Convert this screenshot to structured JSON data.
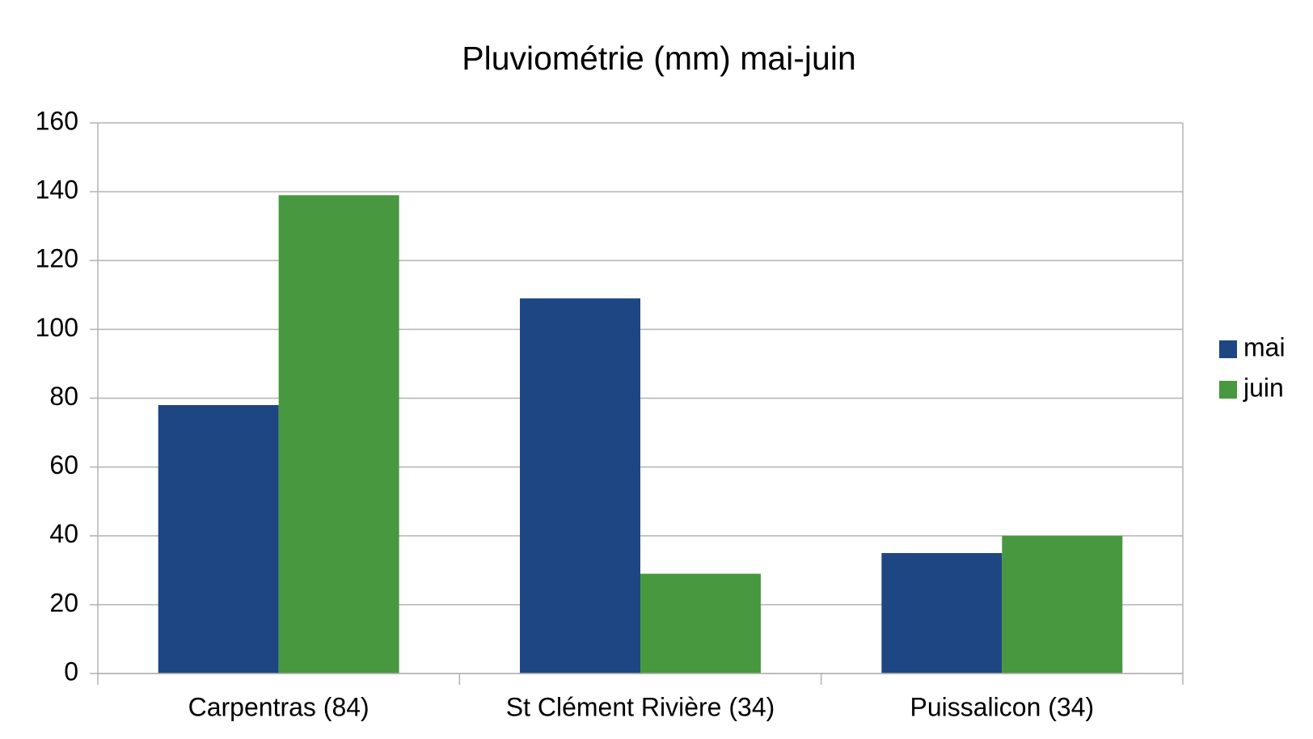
{
  "chart_data": {
    "type": "bar",
    "title": "Pluviométrie (mm) mai-juin",
    "categories": [
      "Carpentras (84)",
      "St Clément Rivière (34)",
      "Puissalicon (34)"
    ],
    "series": [
      {
        "name": "mai",
        "color": "#1e4682",
        "values": [
          78,
          109,
          35
        ]
      },
      {
        "name": "juin",
        "color": "#47983e",
        "values": [
          139,
          29,
          40
        ]
      }
    ],
    "ylim": [
      0,
      160
    ],
    "yticks": [
      0,
      20,
      40,
      60,
      80,
      100,
      120,
      140,
      160
    ],
    "grid": true,
    "legend": "right"
  }
}
